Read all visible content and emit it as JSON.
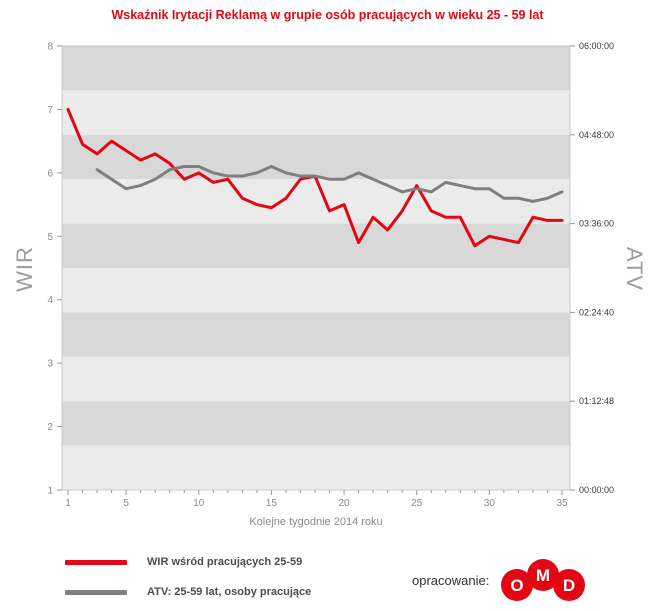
{
  "title": "Wskaźnik Irytacji Reklamą w grupie osób pracujących w wieku 25 - 59 lat",
  "colors": {
    "title": "#e30613",
    "red_series": "#e30613",
    "gray_series": "#7f7f7f",
    "stripe_dark": "#d8d8d8",
    "stripe_light": "#ebebeb",
    "frame": "#c9c9c9",
    "tick": "#999999",
    "tick_text": "#8a8a8a",
    "right_tick_text": "#3a3a3a"
  },
  "axes": {
    "left_label": "WIR",
    "right_label": "ATV",
    "x_label": "Kolejne tygodnie 2014 roku",
    "left_ticks": [
      1,
      2,
      3,
      4,
      5,
      6,
      7,
      8
    ],
    "right_ticks": [
      "00:00:00",
      "01:12:48",
      "02:24:40",
      "03:36:00",
      "04:48:00",
      "06:00:00"
    ],
    "x_ticks": [
      1,
      5,
      10,
      15,
      20,
      25,
      30,
      35
    ]
  },
  "legend": [
    {
      "label": "WIR wśród pracujących 25-59",
      "color": "#e30613"
    },
    {
      "label": "ATV: 25-59 lat, osoby pracujące",
      "color": "#7f7f7f"
    }
  ],
  "credit": {
    "label": "opracowanie:",
    "logo_letters": [
      "O",
      "M",
      "D"
    ],
    "logo_color": "#e30613"
  },
  "chart_data": {
    "type": "line",
    "title": "Wskaźnik Irytacji Reklamą w grupie osób pracujących w wieku 25 - 59 lat",
    "xlabel": "Kolejne tygodnie 2014 roku",
    "x_range": [
      1,
      35
    ],
    "ylim_left": [
      1,
      8
    ],
    "right_axis_labels_bottom_to_top": [
      "00:00:00",
      "01:12:48",
      "02:24:40",
      "03:36:00",
      "04:48:00",
      "06:00:00"
    ],
    "grid": "alternating horizontal stripes",
    "legend_position": "bottom-left",
    "series": [
      {
        "name": "WIR wśród pracujących 25-59",
        "color": "#e30613",
        "axis": "left (WIR 1-8)",
        "x_start": 1,
        "values": [
          7.0,
          6.45,
          6.3,
          6.5,
          6.35,
          6.2,
          6.3,
          6.15,
          5.9,
          6.0,
          5.85,
          5.9,
          5.6,
          5.5,
          5.45,
          5.6,
          5.9,
          5.95,
          5.4,
          5.5,
          4.9,
          5.3,
          5.1,
          5.4,
          5.8,
          5.4,
          5.3,
          5.3,
          4.85,
          5.0,
          4.95,
          4.9,
          5.3,
          5.25,
          5.25
        ]
      },
      {
        "name": "ATV: 25-59 lat, osoby pracujące",
        "color": "#7f7f7f",
        "axis": "right (ATV time); values estimated on left-axis-equivalent scale",
        "x_start": 3,
        "values": [
          6.05,
          5.9,
          5.75,
          5.8,
          5.9,
          6.05,
          6.1,
          6.1,
          6.0,
          5.95,
          5.95,
          6.0,
          6.1,
          6.0,
          5.95,
          5.95,
          5.9,
          5.9,
          6.0,
          5.9,
          5.8,
          5.7,
          5.75,
          5.7,
          5.85,
          5.8,
          5.75,
          5.75,
          5.6,
          5.6,
          5.55,
          5.6,
          5.7
        ]
      }
    ]
  }
}
